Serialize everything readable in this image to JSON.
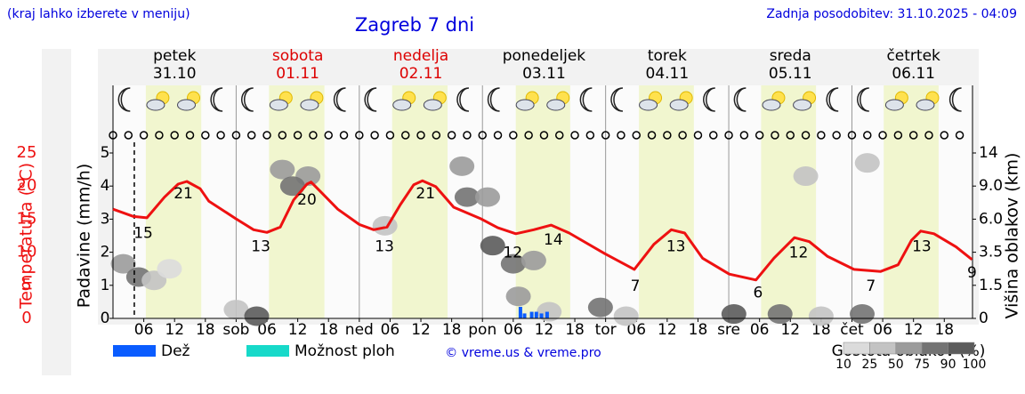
{
  "chart_data": {
    "type": "meteogram",
    "note": "(kraj lahko izberete v meniju)",
    "title": "Zagreb 7 dni",
    "updated": "Zadnja posodobitev: 31.10.2025 - 04:09",
    "credit": "© vreme.us & vreme.pro",
    "days": {
      "names": [
        "petek",
        "sobota",
        "nedelja",
        "ponedeljek",
        "torek",
        "sreda",
        "četrtek"
      ],
      "dates": [
        "31.10",
        "01.11",
        "02.11",
        "03.11",
        "04.11",
        "05.11",
        "06.11"
      ],
      "colors": [
        "#000000",
        "#dd0000",
        "#dd0000",
        "#000000",
        "#000000",
        "#000000",
        "#000000"
      ]
    },
    "xlim": [
      0,
      167.5
    ],
    "xticks": [
      {
        "value": 6,
        "label": "06"
      },
      12,
      18,
      {
        "value": 24,
        "label": "sob"
      },
      {
        "value": 30,
        "label": "06"
      },
      {
        "value": 36,
        "label": "12"
      },
      {
        "value": 42,
        "label": "18"
      },
      {
        "value": 48,
        "label": "ned"
      },
      {
        "value": 54,
        "label": "06"
      },
      {
        "value": 60,
        "label": "12"
      },
      {
        "value": 66,
        "label": "18"
      },
      {
        "value": 72,
        "label": "pon"
      },
      {
        "value": 78,
        "label": "06"
      },
      {
        "value": 84,
        "label": "12"
      },
      {
        "value": 90,
        "label": "18"
      },
      {
        "value": 96,
        "label": "tor"
      },
      {
        "value": 102,
        "label": "06"
      },
      {
        "value": 108,
        "label": "12"
      },
      {
        "value": 114,
        "label": "18"
      },
      {
        "value": 120,
        "label": "sre"
      },
      {
        "value": 126,
        "label": "06"
      },
      {
        "value": 132,
        "label": "12"
      },
      {
        "value": 138,
        "label": "18"
      },
      {
        "value": 144,
        "label": "čet"
      },
      {
        "value": 150,
        "label": "06"
      },
      {
        "value": 156,
        "label": "12"
      },
      {
        "value": 162,
        "label": "18"
      }
    ],
    "now": 4.15,
    "daylight": [
      [
        6.4,
        17.2
      ],
      [
        30.4,
        41.2
      ],
      [
        54.4,
        65.2
      ],
      [
        78.5,
        89.1
      ],
      [
        102.5,
        113.2
      ],
      [
        126.3,
        137
      ],
      [
        150.2,
        160.9
      ]
    ],
    "ylabel": "Padavine (mm/h)",
    "ylim": [
      0,
      5
    ],
    "yticks": [
      0,
      1,
      2,
      3,
      4,
      5
    ],
    "y2label": "Višina oblakov (km)",
    "y2lim": [
      0,
      14
    ],
    "y2ticks": [
      0,
      1.5,
      3.5,
      {
        "value": 6,
        "label": "6.0"
      },
      {
        "value": 9,
        "label": "9.0"
      },
      14
    ],
    "y2scale": "even-ticks",
    "temperature": {
      "axis_label": "Temperatura (°C)",
      "color": "#ee1111",
      "ylim": [
        0,
        25
      ],
      "yticks": [
        0,
        5,
        10,
        15,
        20,
        25
      ],
      "x": [
        0,
        4,
        6.6,
        10,
        12.7,
        14.4,
        17,
        18.7,
        23.9,
        27.4,
        30,
        32.6,
        35.2,
        37.8,
        38.6,
        40.4,
        43.8,
        48,
        50.8,
        53.4,
        56,
        58.6,
        60.3,
        62.9,
        66.4,
        71.6,
        75,
        78.5,
        82,
        85.4,
        88.9,
        95.8,
        101.6,
        105.4,
        108.8,
        111.4,
        114.9,
        120.1,
        125.3,
        128.8,
        132.8,
        135.7,
        139.2,
        144.4,
        149.6,
        153,
        155.6,
        157.4,
        160,
        164.3,
        167.4
      ],
      "values": [
        16.5,
        15.4,
        15.2,
        18.3,
        20.3,
        20.7,
        19.6,
        17.7,
        15.1,
        13.4,
        13.0,
        13.8,
        17.9,
        20.3,
        20.6,
        19.2,
        16.5,
        14.2,
        13.4,
        13.8,
        17.2,
        20.2,
        20.8,
        19.9,
        16.8,
        15.1,
        13.7,
        12.8,
        13.4,
        14.1,
        12.9,
        9.8,
        7.4,
        11.2,
        13.4,
        12.9,
        9.1,
        6.7,
        5.8,
        9.1,
        12.2,
        11.6,
        9.4,
        7.4,
        7.1,
        8.1,
        11.8,
        13.2,
        12.8,
        10.8,
        8.9
      ],
      "labels": {
        "x": [
          5.9,
          13.7,
          28.8,
          37.8,
          52.9,
          60.9,
          77.9,
          85.8,
          101.8,
          109.7,
          125.7,
          133.6,
          147.7,
          157.6,
          167.4
        ],
        "values": [
          15,
          21,
          13,
          20,
          13,
          21,
          12,
          14,
          7,
          13,
          6,
          12,
          7,
          13,
          9
        ]
      }
    },
    "series": [
      {
        "name": "Dež",
        "color": "#0a5cff",
        "x": [
          79.4,
          80.2,
          81.6,
          82.5,
          83.5,
          84.6
        ],
        "values": [
          0.35,
          0.15,
          0.2,
          0.2,
          0.15,
          0.2
        ]
      },
      {
        "name": "Možnost ploh",
        "color": "#17d9c9",
        "x": [],
        "values": []
      }
    ],
    "clouds": {
      "name": "Gostota oblakov (%)",
      "x": [
        2,
        5,
        8,
        11,
        24,
        28,
        33,
        38,
        35,
        53,
        68,
        69,
        73,
        74,
        78,
        82,
        79,
        85,
        95,
        100,
        121,
        130,
        138,
        135,
        146,
        147
      ],
      "height": [
        2.8,
        2.0,
        1.8,
        2.5,
        0.4,
        0.1,
        11.5,
        10.5,
        9,
        5.5,
        12,
        8,
        8,
        4,
        2.8,
        3.0,
        1.0,
        0.3,
        0.5,
        0.1,
        0.2,
        0.2,
        0.1,
        10.5,
        0.2,
        12.5
      ],
      "density": [
        50,
        75,
        25,
        10,
        25,
        90,
        50,
        50,
        75,
        25,
        50,
        75,
        50,
        90,
        75,
        50,
        50,
        25,
        75,
        25,
        90,
        75,
        25,
        25,
        75,
        25
      ],
      "legend_ticks": [
        10,
        25,
        50,
        75,
        90,
        100
      ]
    }
  }
}
